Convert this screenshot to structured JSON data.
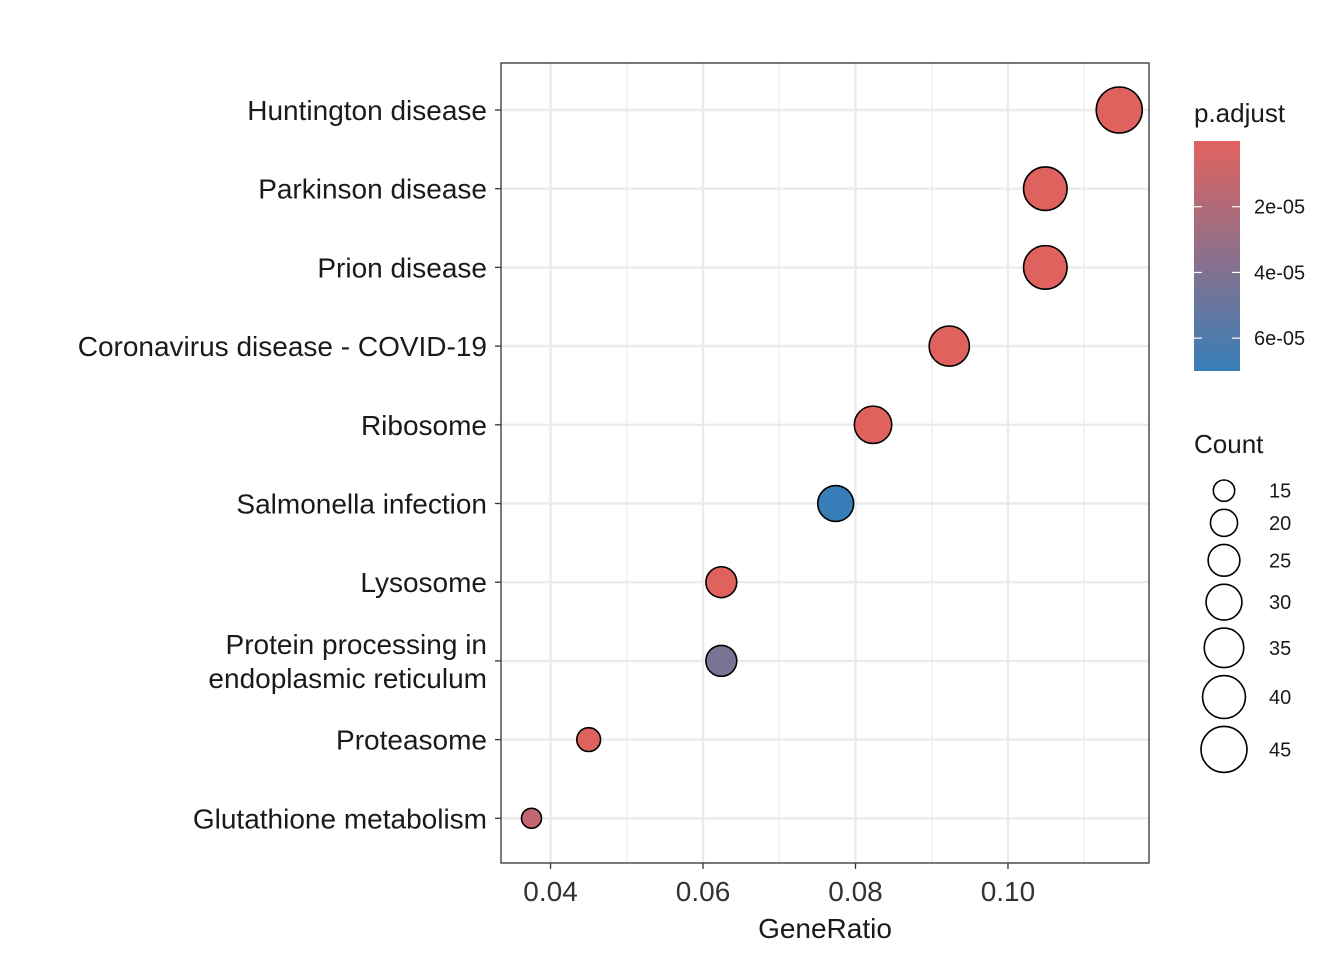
{
  "chart_data": {
    "type": "scatter",
    "xlabel": "GeneRatio",
    "ylabel": "",
    "xlim": [
      0.0335,
      0.1185
    ],
    "xticks": [
      0.04,
      0.06,
      0.08,
      0.1
    ],
    "xtick_labels": [
      "0.04",
      "0.06",
      "0.08",
      "0.10"
    ],
    "grid": true,
    "legend_position": "right",
    "color_by": "p.adjust",
    "size_by": "Count",
    "points": [
      {
        "category": "Huntington disease",
        "x": 0.1146,
        "count": 45,
        "p_adjust": 1e-06
      },
      {
        "category": "Parkinson disease",
        "x": 0.1049,
        "count": 41,
        "p_adjust": 1e-06
      },
      {
        "category": "Prion disease",
        "x": 0.1049,
        "count": 41,
        "p_adjust": 1e-06
      },
      {
        "category": "Coronavirus disease - COVID-19",
        "x": 0.0923,
        "count": 36,
        "p_adjust": 1e-06
      },
      {
        "category": "Ribosome",
        "x": 0.0823,
        "count": 32,
        "p_adjust": 1e-06
      },
      {
        "category": "Salmonella infection",
        "x": 0.0774,
        "count": 30,
        "p_adjust": 7e-05
      },
      {
        "category": "Lysosome",
        "x": 0.0624,
        "count": 24,
        "p_adjust": 1e-06
      },
      {
        "category": "Protein processing in endoplasmic reticulum",
        "label_lines": [
          "Protein processing in",
          "endoplasmic reticulum"
        ],
        "x": 0.0624,
        "count": 24,
        "p_adjust": 4.2e-05
      },
      {
        "category": "Proteasome",
        "x": 0.045,
        "count": 17,
        "p_adjust": 1e-06
      },
      {
        "category": "Glutathione metabolism",
        "x": 0.0375,
        "count": 14,
        "p_adjust": 1.3e-05
      }
    ],
    "color_legend": {
      "title": "p.adjust",
      "low_color": "#E2625E",
      "high_color": "#377EB8",
      "range": [
        0,
        7e-05
      ],
      "ticks": [
        2e-05,
        4e-05,
        6e-05
      ],
      "tick_labels": [
        "2e-05",
        "4e-05",
        "6e-05"
      ]
    },
    "size_legend": {
      "title": "Count",
      "values": [
        15,
        20,
        25,
        30,
        35,
        40,
        45
      ],
      "labels": [
        "15",
        "20",
        "25",
        "30",
        "35",
        "40",
        "45"
      ],
      "range": [
        14,
        45
      ]
    }
  }
}
